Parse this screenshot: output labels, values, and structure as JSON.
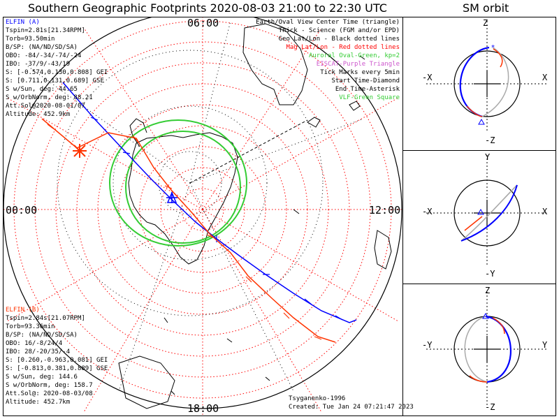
{
  "header": {
    "title": "Southern Geographic Footprints 2020-08-03 21:00 to 22:30 UTC",
    "orbit_title": "SM orbit"
  },
  "colors": {
    "elfin_a": "#0000ff",
    "elfin_b": "#ff3300",
    "auroral_oval": "#33cc33",
    "geo_grid": "#000000",
    "mag_grid": "#ff0000",
    "eiscat": "#cc55cc",
    "vlf": "#33cc33",
    "orbit_gray": "#aaaaaa"
  },
  "elfin_a": {
    "lines": [
      "ELFIN (A)",
      "Tspin=2.81s[21.34RPM]",
      "Torb=93.50min",
      "B/SP: (NA/ND/SD/SA)",
      "OBO: -84/-34/-74/-24",
      "IBO: -37/9/-43/19",
      "S: [-0.574,0.130,0.808] GEI",
      "S: [0.711,0.131,0.689] GSE",
      "S w/Sun, deg: 44.65",
      "S w/OrbNorm, deg: 88.21",
      "Att.Sol@2020-08-01/07",
      "Altitude: 452.9km"
    ]
  },
  "elfin_b": {
    "lines": [
      "ELFIN (B)",
      "Tspin=2.84s[21.07RPM]",
      "Torb=93.36min",
      "B/SP: (NA/ND/SD/SA)",
      "OBO: 16/-8/24/4",
      "IBO: 28/-20/35/-4",
      "S: [0.260,-0.963,0.081] GEI",
      "S: [-0.813,0.381,0.889] GSE",
      "S w/Sun, deg: 144.6",
      "S w/OrbNorm, deg: 158.7",
      "Att.Sol@: 2020-08-03/08",
      "Altitude: 452.7km"
    ]
  },
  "legend": {
    "items": [
      {
        "text": "Earth/Oval View Center Time (triangle)",
        "color": "#000000"
      },
      {
        "text": "Thick - Science (FGM and/or EPD)",
        "color": "#000000"
      },
      {
        "text": "Geo Lat/Lon - Black dotted lines",
        "color": "#000000"
      },
      {
        "text": "Mag Lat/Lon - Red dotted lines",
        "color": "#ff0000"
      },
      {
        "text": "Auroral Oval-Green, kp=2",
        "color": "#33cc33"
      },
      {
        "text": "EISCAT-Purple Triangle",
        "color": "#cc55cc"
      },
      {
        "text": "Tick Marks every 5min",
        "color": "#000000"
      },
      {
        "text": "Start Time-Diamond",
        "color": "#000000"
      },
      {
        "text": "End Time-Asterisk",
        "color": "#000000"
      },
      {
        "text": "VLF-Green Square",
        "color": "#33cc33"
      }
    ]
  },
  "time_labels": {
    "top": "06:00",
    "left": "00:00",
    "right": "12:00",
    "bottom": "18:00"
  },
  "footer": {
    "model": "Tsyganenko-1996",
    "created": "Created: Tue Jan 24 07:21:47 2023"
  },
  "orbit_panels": [
    {
      "top": "Z",
      "bottom": "-Z",
      "left": "-X",
      "right": "X"
    },
    {
      "top": "Y",
      "bottom": "-Y",
      "left": "-X",
      "right": "X"
    },
    {
      "top": "Z",
      "bottom": "-Z",
      "left": "-Y",
      "right": "Y"
    }
  ],
  "chart_data": {
    "type": "map",
    "projection": "south polar stereographic",
    "grid": true,
    "series": [
      {
        "name": "ELFIN (A)",
        "color": "#0000ff",
        "ticks_every_min": 5
      },
      {
        "name": "ELFIN (B)",
        "color": "#ff3300",
        "ticks_every_min": 5
      }
    ],
    "auroral_oval_kp": 2
  }
}
